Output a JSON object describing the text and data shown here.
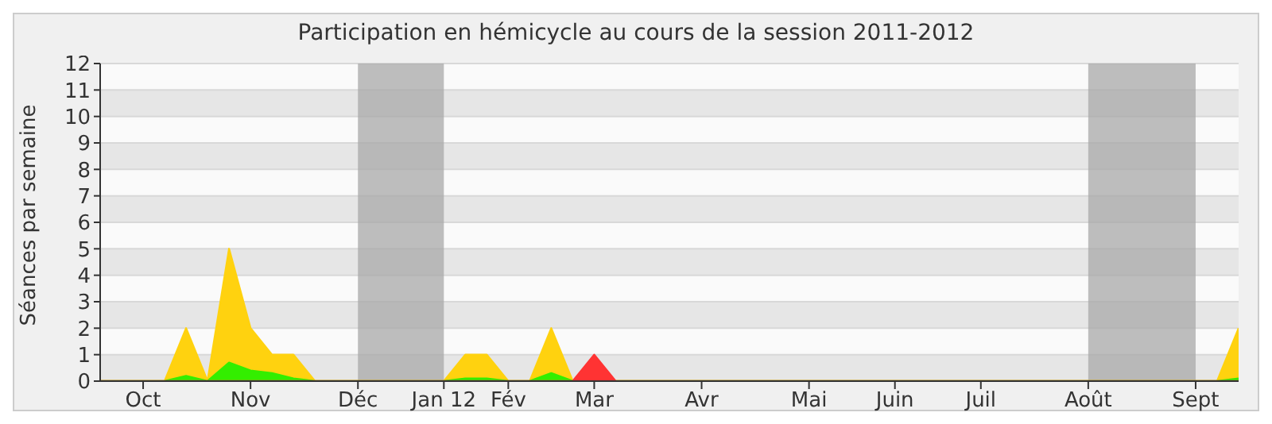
{
  "chart_data": {
    "type": "area",
    "title": "Participation en hémicycle au cours de la session 2011-2012",
    "ylabel": "Séances par semaine",
    "categories": [
      null,
      null,
      "Oct",
      null,
      null,
      null,
      null,
      "Nov",
      null,
      null,
      null,
      null,
      "Déc",
      null,
      null,
      null,
      "Jan 12",
      null,
      null,
      "Fév",
      null,
      null,
      null,
      "Mar",
      null,
      null,
      null,
      null,
      "Avr",
      null,
      null,
      null,
      null,
      "Mai",
      null,
      null,
      null,
      "Juin",
      null,
      null,
      null,
      "Juil",
      null,
      null,
      null,
      null,
      "Août",
      null,
      null,
      null,
      null,
      "Sept",
      null,
      null
    ],
    "series": [
      {
        "color": "#ffd20f",
        "values": [
          0,
          0,
          0,
          0,
          2,
          0,
          5,
          2,
          1,
          1,
          0,
          0,
          0,
          0,
          0,
          0,
          0,
          1,
          1,
          0,
          0,
          2,
          0,
          0,
          0,
          0,
          0,
          0,
          0,
          0,
          0,
          0,
          0,
          0,
          0,
          0,
          0,
          0,
          0,
          0,
          0,
          0,
          0,
          0,
          0,
          0,
          0,
          0,
          0,
          0,
          0,
          0,
          0,
          2
        ]
      },
      {
        "color": "#33ee00",
        "values": [
          0,
          0,
          0,
          0,
          0.2,
          0,
          0.7,
          0.4,
          0.3,
          0.1,
          0,
          0,
          0,
          0,
          0,
          0,
          0,
          0.1,
          0.1,
          0,
          0,
          0.3,
          0,
          0,
          0,
          0,
          0,
          0,
          0,
          0,
          0,
          0,
          0,
          0,
          0,
          0,
          0,
          0,
          0,
          0,
          0,
          0,
          0,
          0,
          0,
          0,
          0,
          0,
          0,
          0,
          0,
          0,
          0,
          0.1
        ]
      },
      {
        "color": "#ff3333",
        "values": [
          0,
          0,
          0,
          0,
          0,
          0,
          0,
          0,
          0,
          0,
          0,
          0,
          0,
          0,
          0,
          0,
          0,
          0,
          0,
          0,
          0,
          0,
          0,
          1,
          0,
          0,
          0,
          0,
          0,
          0,
          0,
          0,
          0,
          0,
          0,
          0,
          0,
          0,
          0,
          0,
          0,
          0,
          0,
          0,
          0,
          0,
          0,
          0,
          0,
          0,
          0,
          0,
          0,
          0
        ]
      }
    ],
    "ylim": [
      0,
      12
    ],
    "yticks": [
      0,
      1,
      2,
      3,
      4,
      5,
      6,
      7,
      8,
      9,
      10,
      11,
      12
    ],
    "grid": "y",
    "bands": [
      {
        "axis": "x",
        "from": "Déc",
        "to": "Jan 12",
        "color": "#a8a8a8"
      },
      {
        "axis": "x",
        "from": "Août",
        "to": "Sept",
        "color": "#a8a8a8"
      }
    ]
  }
}
